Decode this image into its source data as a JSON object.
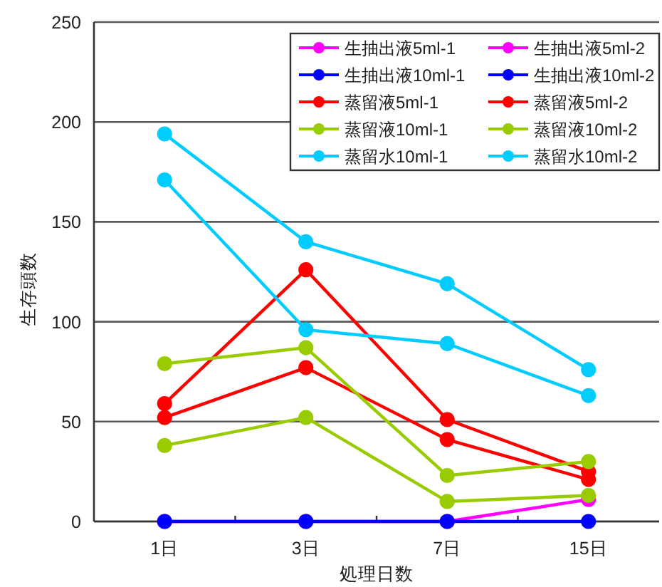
{
  "chart_data": {
    "type": "line",
    "xlabel": "処理日数",
    "ylabel": "生存頭数",
    "categories": [
      "1日",
      "3日",
      "7日",
      "15日"
    ],
    "ylim": [
      0,
      250
    ],
    "yticks": [
      0,
      50,
      100,
      150,
      200,
      250
    ],
    "grid": "y",
    "legend": "top right",
    "marker": "circle",
    "line_style": "solid",
    "series": [
      {
        "name": "生抽出液5ml-1",
        "color": "#ff00ff",
        "values": [
          null,
          null,
          null,
          null
        ]
      },
      {
        "name": "生抽出液5ml-2",
        "color": "#ff00ff",
        "values": [
          0,
          0,
          0,
          11
        ]
      },
      {
        "name": "生抽出液10ml-1",
        "color": "#0000ff",
        "values": [
          null,
          null,
          null,
          null
        ]
      },
      {
        "name": "生抽出液10ml-2",
        "color": "#0000ff",
        "values": [
          0,
          0,
          0,
          0
        ]
      },
      {
        "name": "蒸留液5ml-1",
        "color": "#ff0000",
        "values": [
          59,
          126,
          51,
          25
        ]
      },
      {
        "name": "蒸留液5ml-2",
        "color": "#ff0000",
        "values": [
          52,
          77,
          41,
          21
        ]
      },
      {
        "name": "蒸留液10ml-1",
        "color": "#99cc00",
        "values": [
          79,
          87,
          23,
          30
        ]
      },
      {
        "name": "蒸留液10ml-2",
        "color": "#99cc00",
        "values": [
          38,
          52,
          10,
          13
        ]
      },
      {
        "name": "蒸留水10ml-1",
        "color": "#00ccff",
        "values": [
          194,
          140,
          119,
          76
        ]
      },
      {
        "name": "蒸留水10ml-2",
        "color": "#00ccff",
        "values": [
          171,
          96,
          89,
          63
        ]
      }
    ]
  }
}
